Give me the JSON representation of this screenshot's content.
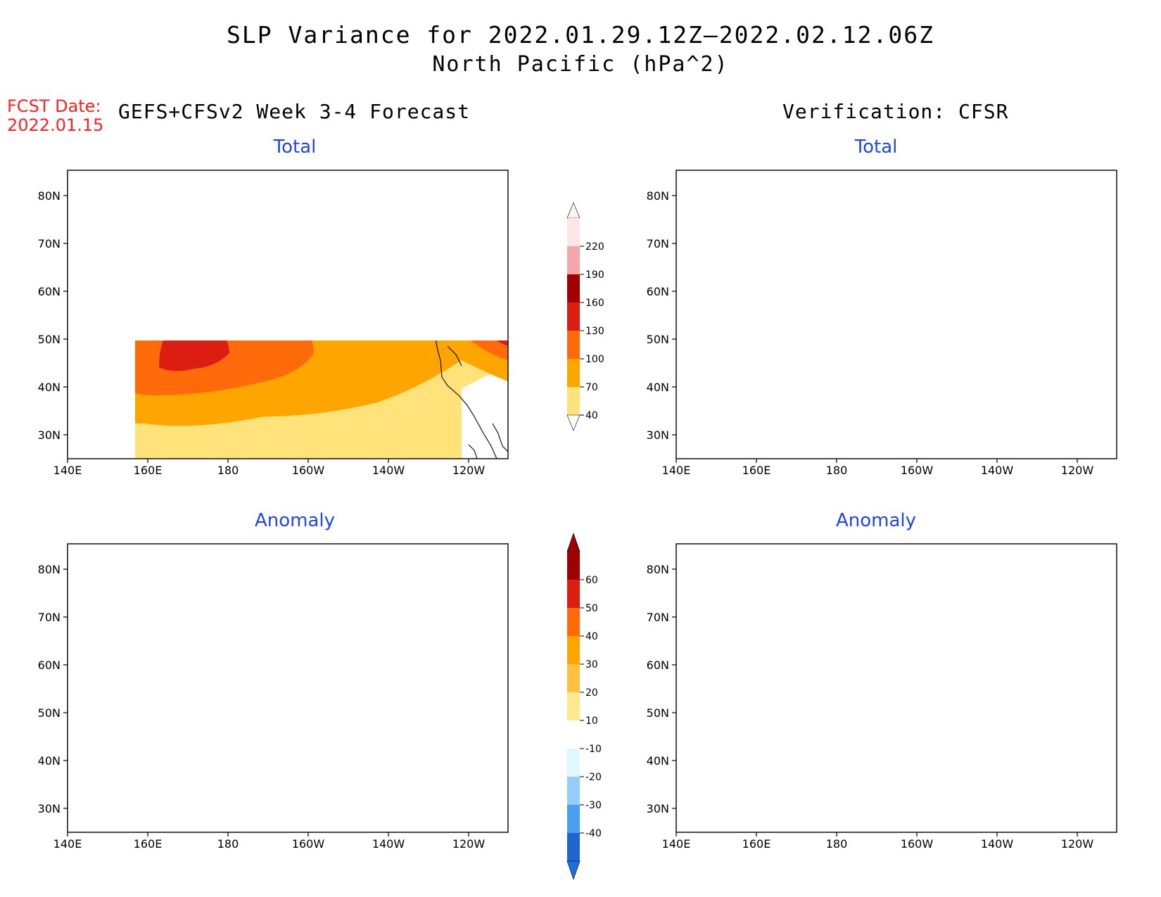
{
  "title": {
    "line1": "SLP Variance for 2022.01.29.12Z–2022.02.12.06Z",
    "line2": "North Pacific (hPa^2)"
  },
  "forecast_date": {
    "label": "FCST Date:",
    "value": "2022.01.15"
  },
  "columns": {
    "left": "GEFS+CFSv2 Week 3-4 Forecast",
    "right": "Verification: CFSR"
  },
  "panels": {
    "fcst_total": {
      "title": "Total"
    },
    "fcst_anomaly": {
      "title": "Anomaly"
    },
    "obs_total": {
      "title": "Total"
    },
    "obs_anomaly": {
      "title": "Anomaly"
    }
  },
  "axes": {
    "lon_labels": [
      "140E",
      "160E",
      "180",
      "160W",
      "140W",
      "120W"
    ],
    "lat_labels": [
      "80N",
      "70N",
      "60N",
      "50N",
      "40N",
      "30N"
    ],
    "lon_range": [
      "140E",
      "110W"
    ],
    "lat_range": [
      "25N",
      "85N"
    ]
  },
  "colorbars": {
    "total": {
      "labels": [
        "220",
        "190",
        "160",
        "130",
        "100",
        "70",
        "40"
      ],
      "colors": [
        "#fde6e6",
        "#f4a6aa",
        "#a00000",
        "#dc1e12",
        "#ff6a0a",
        "#ffa500",
        "#ffe27a"
      ],
      "upper_color": "#fff2f2",
      "lower_color": "#ffffff"
    },
    "anomaly": {
      "labels": [
        "60",
        "50",
        "40",
        "30",
        "20",
        "10",
        "-10",
        "-20",
        "-30",
        "-40"
      ],
      "colors": [
        "#a00000",
        "#dc1e12",
        "#ff6a0a",
        "#ffa500",
        "#ffbf40",
        "#ffe98f",
        "#ffffff",
        "#e0f8ff",
        "#96cdf8",
        "#4aa0f0",
        "#2064d4"
      ],
      "upper_color": "#a00000",
      "lower_color": "#1e6fdc"
    }
  }
}
